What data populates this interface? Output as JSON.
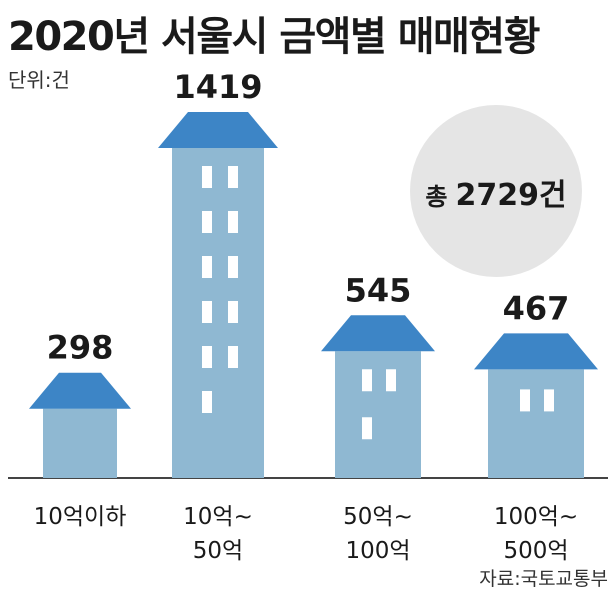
{
  "title": "2020년 서울시 금액별 매매현황",
  "unit_label": "단위:건",
  "source_label": "자료:국토교통부",
  "total": {
    "prefix": "총",
    "value": "2729건"
  },
  "colors": {
    "roof": "#3d85c6",
    "wall": "#8fb8d2",
    "window": "#ffffff",
    "baseline": "#444444",
    "circle": "#e5e5e5"
  },
  "chart_data": {
    "type": "bar",
    "title": "2020년 서울시 금액별 매매현황",
    "xlabel": "",
    "ylabel": "",
    "unit": "건",
    "categories": [
      "10억이하",
      "10억~ 50억",
      "50억~ 100억",
      "100억~ 500억"
    ],
    "category_lines": [
      [
        "10억이하"
      ],
      [
        "10억~",
        "50억"
      ],
      [
        "50억~",
        "100억"
      ],
      [
        "100억~",
        "500억"
      ]
    ],
    "values": [
      298,
      1419,
      545,
      467
    ],
    "value_labels": [
      "298",
      "1419",
      "545",
      "467"
    ],
    "total": 2729,
    "ylim": [
      0,
      1419
    ],
    "grid": false,
    "legend": "none"
  }
}
